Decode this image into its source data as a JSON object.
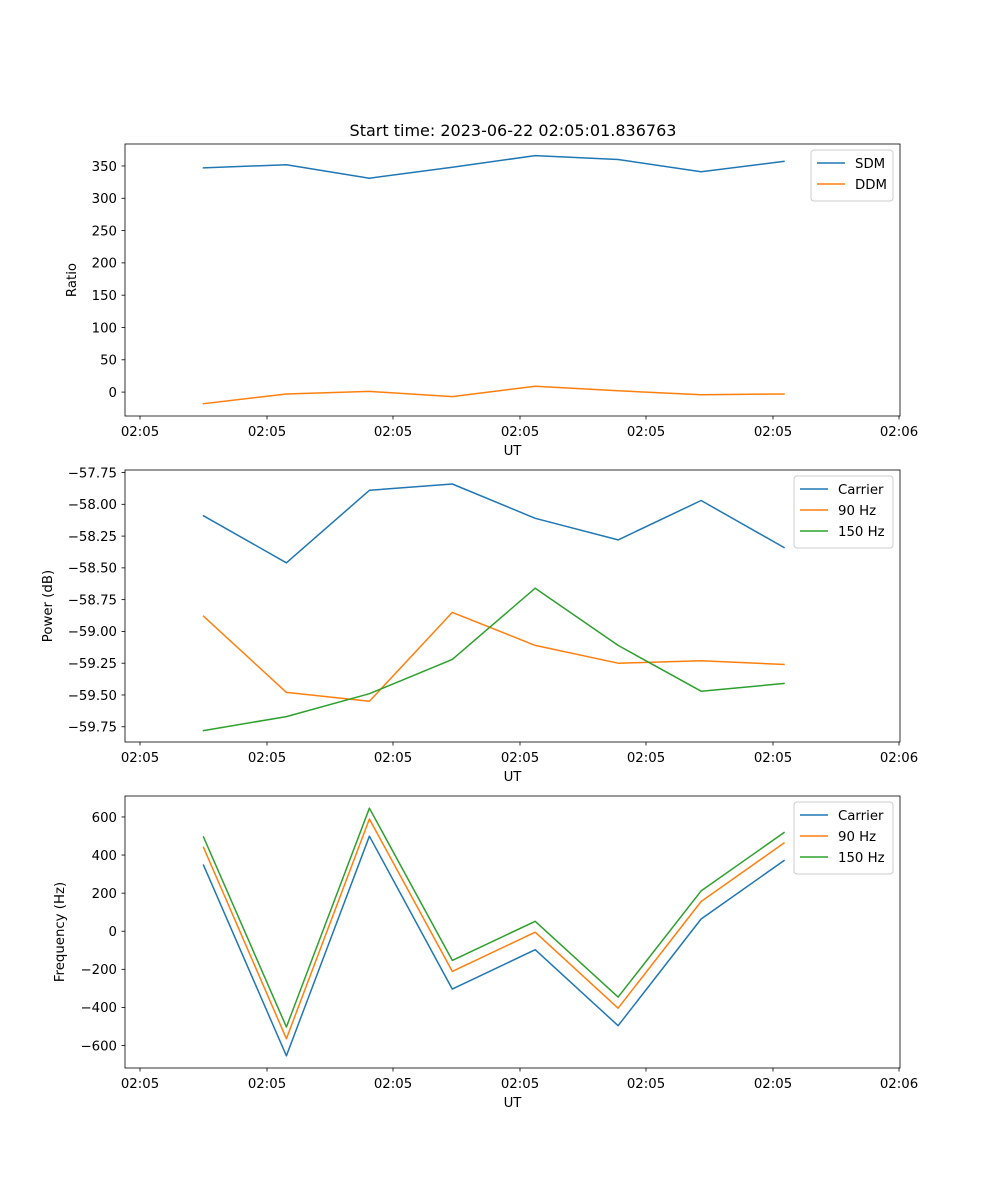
{
  "figure": {
    "title": "Start time: 2023-06-22 02:05:01.836763"
  },
  "chart_data": [
    {
      "type": "line",
      "title": "Start time: 2023-06-22 02:05:01.836763",
      "xlabel": "UT",
      "ylabel": "Ratio",
      "x_ticks": [
        "02:05",
        "02:05",
        "02:05",
        "02:05",
        "02:05",
        "02:05",
        "02:06"
      ],
      "y_ticks": [
        "0",
        "50",
        "100",
        "150",
        "200",
        "250",
        "300",
        "350"
      ],
      "ylim": [
        -37,
        384
      ],
      "grid": false,
      "legend_position": "upper right",
      "x": [
        "02:05:03.8",
        "02:05:11.8",
        "02:05:19.8",
        "02:05:27.8",
        "02:05:35.8",
        "02:05:43.8",
        "02:05:51.8",
        "02:05:59.8"
      ],
      "series": [
        {
          "name": "SDM",
          "color": "#1f77b4",
          "values": [
            347,
            352,
            331,
            348,
            366,
            360,
            341,
            357
          ]
        },
        {
          "name": "DDM",
          "color": "#ff7f0e",
          "values": [
            -18,
            -3,
            1,
            -7,
            9,
            2,
            -4,
            -3
          ]
        }
      ]
    },
    {
      "type": "line",
      "xlabel": "UT",
      "ylabel": "Power (dB)",
      "x_ticks": [
        "02:05",
        "02:05",
        "02:05",
        "02:05",
        "02:05",
        "02:05",
        "02:06"
      ],
      "y_ticks": [
        "−59.75",
        "−59.50",
        "−59.25",
        "−59.00",
        "−58.75",
        "−58.50",
        "−58.25",
        "−58.00",
        "−57.75"
      ],
      "ylim": [
        -59.87,
        -57.73
      ],
      "grid": false,
      "legend_position": "upper right",
      "x": [
        "02:05:03.8",
        "02:05:11.8",
        "02:05:19.8",
        "02:05:27.8",
        "02:05:35.8",
        "02:05:43.8",
        "02:05:51.8",
        "02:05:59.8"
      ],
      "series": [
        {
          "name": "Carrier",
          "color": "#1f77b4",
          "values": [
            -58.09,
            -58.46,
            -57.89,
            -57.84,
            -58.11,
            -58.28,
            -57.97,
            -58.34
          ]
        },
        {
          "name": "90 Hz",
          "color": "#ff7f0e",
          "values": [
            -58.88,
            -59.48,
            -59.55,
            -58.85,
            -59.11,
            -59.25,
            -59.23,
            -59.26
          ]
        },
        {
          "name": "150 Hz",
          "color": "#2ca02c",
          "values": [
            -59.78,
            -59.67,
            -59.49,
            -59.22,
            -58.66,
            -59.11,
            -59.47,
            -59.41
          ]
        }
      ]
    },
    {
      "type": "line",
      "xlabel": "UT",
      "ylabel": "Frequency (Hz)",
      "x_ticks": [
        "02:05",
        "02:05",
        "02:05",
        "02:05",
        "02:05",
        "02:05",
        "02:06"
      ],
      "y_ticks": [
        "−600",
        "−400",
        "−200",
        "0",
        "200",
        "400",
        "600"
      ],
      "ylim": [
        -718,
        710
      ],
      "grid": false,
      "legend_position": "upper right",
      "x": [
        "02:05:03.8",
        "02:05:11.8",
        "02:05:19.8",
        "02:05:27.8",
        "02:05:35.8",
        "02:05:43.8",
        "02:05:51.8",
        "02:05:59.8"
      ],
      "series": [
        {
          "name": "Carrier",
          "color": "#1f77b4",
          "values": [
            347,
            -654,
            499,
            -304,
            -97,
            -496,
            64,
            371
          ]
        },
        {
          "name": "90 Hz",
          "color": "#ff7f0e",
          "values": [
            440,
            -564,
            589,
            -211,
            -5,
            -404,
            156,
            463
          ]
        },
        {
          "name": "150 Hz",
          "color": "#2ca02c",
          "values": [
            495,
            -503,
            646,
            -153,
            52,
            -346,
            212,
            518
          ]
        }
      ]
    }
  ]
}
